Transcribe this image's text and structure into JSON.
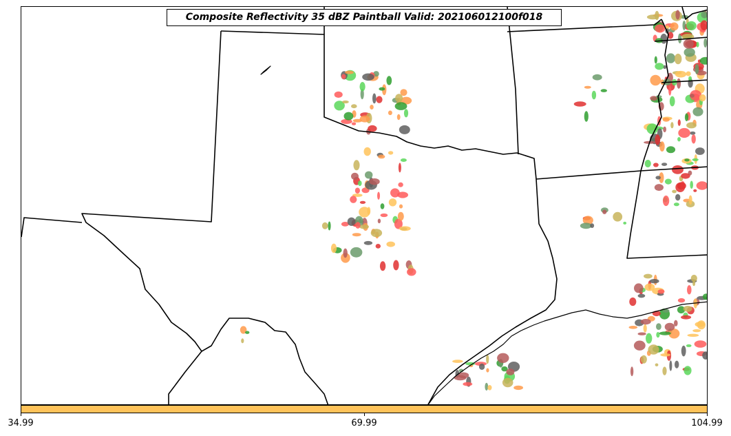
{
  "title": "Composite Reflectivity 35 dBZ Paintball Valid: 202106012100f018",
  "colorbar": {
    "color": "#ffc35a",
    "tick_labels": [
      "34.99",
      "69.99",
      "104.99"
    ]
  },
  "member_colors": [
    "#ff5a5a",
    "#5ad75a",
    "#6b9b6b",
    "#ffc35a",
    "#ff9a4a",
    "#b55a5a",
    "#5f5f5f",
    "#c8b45a",
    "#2f9f2f",
    "#e03030"
  ],
  "map_features": [
    "state-boundaries",
    "coastline"
  ]
}
